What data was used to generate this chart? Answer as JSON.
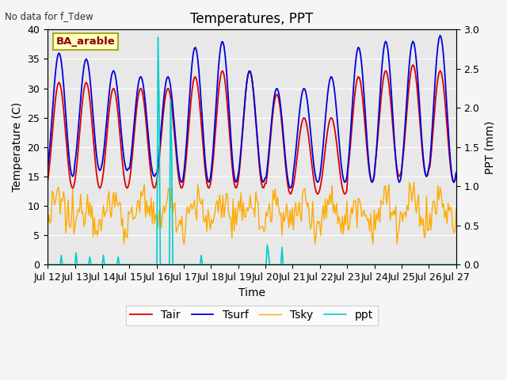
{
  "title": "Temperatures, PPT",
  "no_data_label": "No data for f_Tdew",
  "site_label": "BA_arable",
  "xlabel": "Time",
  "ylabel_left": "Temperature (C)",
  "ylabel_right": "PPT (mm)",
  "ylim_left": [
    0,
    40
  ],
  "ylim_right": [
    0,
    3.0
  ],
  "xlim": [
    0,
    360
  ],
  "xtick_positions": [
    0,
    24,
    48,
    72,
    96,
    120,
    144,
    168,
    192,
    216,
    240,
    264,
    288,
    312,
    336,
    360
  ],
  "xtick_labels": [
    "Jul 12",
    "Jul 13",
    "Jul 14",
    "Jul 15",
    "Jul 16",
    "Jul 17",
    "Jul 18",
    "Jul 19",
    "Jul 20",
    "Jul 21",
    "Jul 22",
    "Jul 23",
    "Jul 24",
    "Jul 25",
    "Jul 26",
    "Jul 27"
  ],
  "ytick_left": [
    0,
    5,
    10,
    15,
    20,
    25,
    30,
    35,
    40
  ],
  "ytick_right": [
    0.0,
    0.5,
    1.0,
    1.5,
    2.0,
    2.5,
    3.0
  ],
  "legend_labels": [
    "Tair",
    "Tsurf",
    "Tsky",
    "ppt"
  ],
  "tair_color": "#dd0000",
  "tsurf_color": "#0000dd",
  "tsky_color": "#ffaa00",
  "ppt_color": "#00cccc",
  "background_color": "#e0e0e0",
  "plot_bg_color": "#e8e8e8",
  "grid_color": "#ffffff",
  "title_fontsize": 12,
  "label_fontsize": 10,
  "tick_fontsize": 9,
  "legend_fontsize": 10
}
